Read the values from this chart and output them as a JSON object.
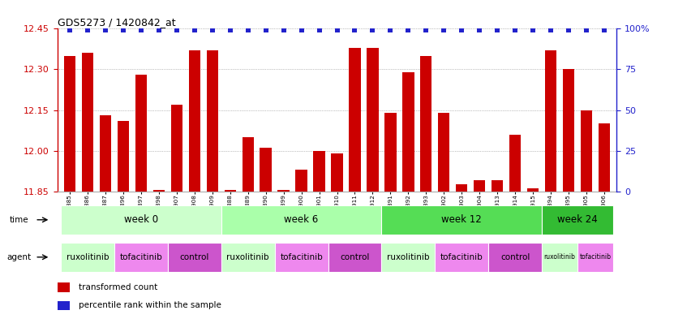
{
  "title": "GDS5273 / 1420842_at",
  "samples": [
    "GSM1105885",
    "GSM1105886",
    "GSM1105887",
    "GSM1105896",
    "GSM1105897",
    "GSM1105898",
    "GSM1105907",
    "GSM1105908",
    "GSM1105909",
    "GSM1105888",
    "GSM1105889",
    "GSM1105890",
    "GSM1105899",
    "GSM1105900",
    "GSM1105901",
    "GSM1105910",
    "GSM1105911",
    "GSM1105912",
    "GSM1105891",
    "GSM1105892",
    "GSM1105893",
    "GSM1105902",
    "GSM1105903",
    "GSM1105904",
    "GSM1105913",
    "GSM1105914",
    "GSM1105915",
    "GSM1105894",
    "GSM1105895",
    "GSM1105905",
    "GSM1105906"
  ],
  "bar_values": [
    12.35,
    12.36,
    12.13,
    12.11,
    12.28,
    11.855,
    12.17,
    12.37,
    12.37,
    11.855,
    12.05,
    12.01,
    11.855,
    11.93,
    12.0,
    11.99,
    12.38,
    12.38,
    12.14,
    12.29,
    12.35,
    12.14,
    11.875,
    11.89,
    11.89,
    12.06,
    11.86,
    12.37,
    12.3,
    12.15,
    12.1
  ],
  "bar_color": "#cc0000",
  "percentile_color": "#2222cc",
  "ylim_left": [
    11.85,
    12.45
  ],
  "ylim_right": [
    0,
    100
  ],
  "yticks_left": [
    11.85,
    12.0,
    12.15,
    12.3,
    12.45
  ],
  "yticks_right": [
    0,
    25,
    50,
    75,
    100
  ],
  "time_groups": [
    {
      "label": "week 0",
      "start": 0,
      "end": 9,
      "color": "#ccffcc"
    },
    {
      "label": "week 6",
      "start": 9,
      "end": 18,
      "color": "#aaffaa"
    },
    {
      "label": "week 12",
      "start": 18,
      "end": 27,
      "color": "#55dd55"
    },
    {
      "label": "week 24",
      "start": 27,
      "end": 31,
      "color": "#33bb33"
    }
  ],
  "agent_groups": [
    {
      "label": "ruxolitinib",
      "start": 0,
      "end": 3,
      "color": "#ccffcc"
    },
    {
      "label": "tofacitinib",
      "start": 3,
      "end": 6,
      "color": "#ee88ee"
    },
    {
      "label": "control",
      "start": 6,
      "end": 9,
      "color": "#cc55cc"
    },
    {
      "label": "ruxolitinib",
      "start": 9,
      "end": 12,
      "color": "#ccffcc"
    },
    {
      "label": "tofacitinib",
      "start": 12,
      "end": 15,
      "color": "#ee88ee"
    },
    {
      "label": "control",
      "start": 15,
      "end": 18,
      "color": "#cc55cc"
    },
    {
      "label": "ruxolitinib",
      "start": 18,
      "end": 21,
      "color": "#ccffcc"
    },
    {
      "label": "tofacitinib",
      "start": 21,
      "end": 24,
      "color": "#ee88ee"
    },
    {
      "label": "control",
      "start": 24,
      "end": 27,
      "color": "#cc55cc"
    },
    {
      "label": "ruxolitinib",
      "start": 27,
      "end": 29,
      "color": "#ccffcc"
    },
    {
      "label": "tofacitinib",
      "start": 29,
      "end": 31,
      "color": "#ee88ee"
    }
  ],
  "legend_items": [
    {
      "color": "#cc0000",
      "label": "transformed count"
    },
    {
      "color": "#2222cc",
      "label": "percentile rank within the sample"
    }
  ],
  "background_color": "#ffffff",
  "grid_color": "#888888"
}
